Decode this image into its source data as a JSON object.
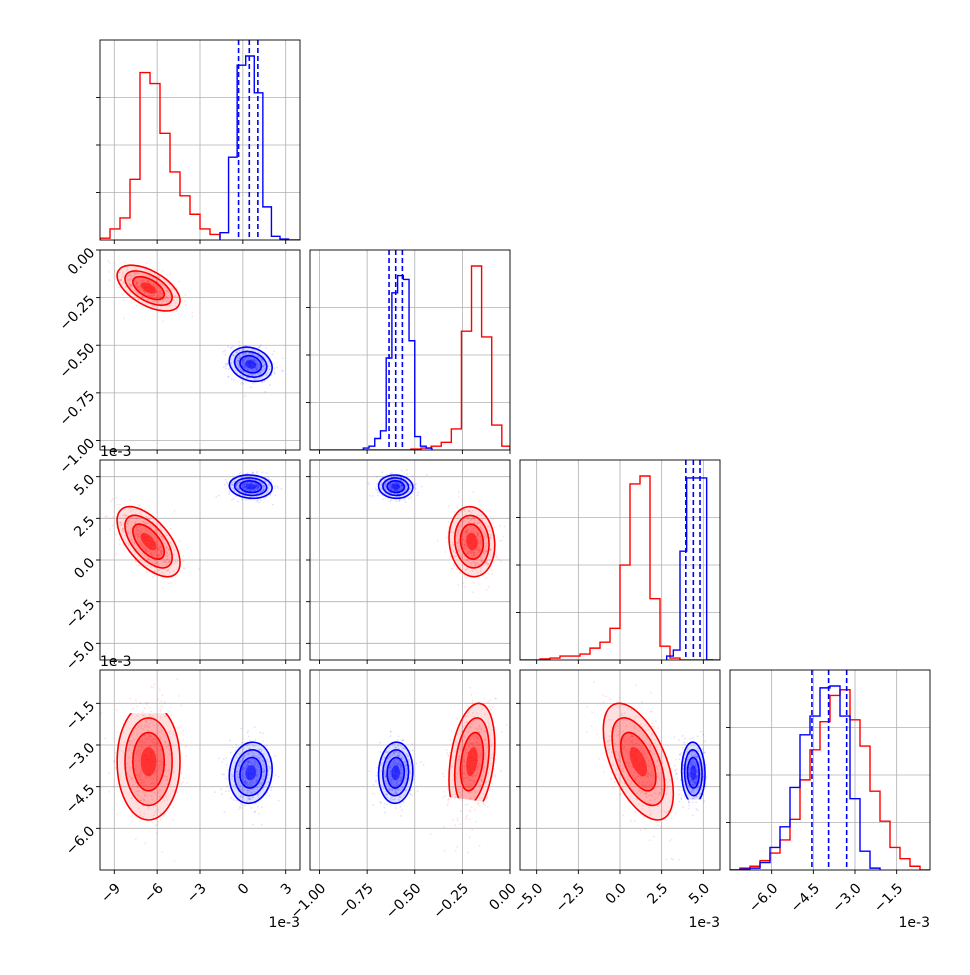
{
  "colors": {
    "series_a": "#ff0000",
    "series_b": "#0000ff",
    "grid": "#b0b0b0",
    "frame": "#000000"
  },
  "chart_data": {
    "type": "corner",
    "grid": true,
    "offset_text": "1e-3",
    "parameters": [
      {
        "range": [
          -10,
          4
        ],
        "ticks": [
          -9,
          -6,
          -3,
          0,
          3
        ],
        "tick_labels": [
          "−9",
          "−6",
          "−3",
          "0",
          "3"
        ],
        "offset_text": "1e-3"
      },
      {
        "range": [
          -1.05,
          0.0
        ],
        "ticks": [
          -1.0,
          -0.75,
          -0.5,
          -0.25,
          0.0
        ],
        "tick_labels": [
          "−1.00",
          "−0.75",
          "−0.50",
          "−0.25",
          "0.00"
        ],
        "offset_text": ""
      },
      {
        "range": [
          -6,
          6
        ],
        "ticks": [
          -5.0,
          -2.5,
          0.0,
          2.5,
          5.0
        ],
        "tick_labels": [
          "−5.0",
          "−2.5",
          "0.0",
          "2.5",
          "5.0"
        ],
        "offset_text": "1e-3"
      },
      {
        "range": [
          -7.5,
          -0.3
        ],
        "ticks": [
          -6.0,
          -4.5,
          -3.0,
          -1.5
        ],
        "tick_labels": [
          "−6.0",
          "−4.5",
          "−3.0",
          "−1.5"
        ],
        "offset_text": "1e-3"
      }
    ],
    "series": [
      {
        "color": "#ff0000",
        "means": [
          -6.6,
          -0.2,
          1.1,
          -3.6
        ],
        "sds": [
          1.1,
          0.06,
          1.05,
          1.05
        ],
        "corr": {
          "0-1": -0.55,
          "0-2": -0.6,
          "0-3": 0.0,
          "1-2": -0.1,
          "1-3": 0.3,
          "2-3": -0.55
        },
        "histograms": [
          {
            "edges": [
              -10,
              -9.3,
              -8.6,
              -7.9,
              -7.2,
              -6.5,
              -5.8,
              -5.1,
              -4.4,
              -3.7,
              -3.0,
              -2.3,
              -1.6
            ],
            "counts": [
              0.01,
              0.06,
              0.12,
              0.33,
              0.91,
              0.85,
              0.58,
              0.37,
              0.24,
              0.14,
              0.06,
              0.03,
              0.01
            ]
          },
          {
            "edges": [
              -1.05,
              -0.997,
              -0.944,
              -0.891,
              -0.838,
              -0.785,
              -0.732,
              -0.679,
              -0.626,
              -0.573,
              -0.52,
              -0.467,
              -0.414,
              -0.361,
              -0.308,
              -0.255,
              -0.202,
              -0.149,
              -0.096,
              -0.043,
              0.0
            ],
            "counts": [
              0,
              0,
              0,
              0,
              0,
              0,
              0,
              0,
              0,
              0,
              0.005,
              0.01,
              0.02,
              0.04,
              0.11,
              0.62,
              0.96,
              0.59,
              0.13,
              0.02
            ]
          },
          {
            "edges": [
              -6,
              -5.4,
              -4.8,
              -4.2,
              -3.6,
              -3.0,
              -2.4,
              -1.8,
              -1.2,
              -0.6,
              0.0,
              0.6,
              1.2,
              1.8,
              2.4,
              3.0,
              3.6,
              4.2,
              4.8,
              5.4,
              6.0
            ],
            "counts": [
              0,
              0,
              0.005,
              0.01,
              0.02,
              0.02,
              0.03,
              0.06,
              0.09,
              0.16,
              0.48,
              0.89,
              0.93,
              0.31,
              0.07,
              0.01,
              0,
              0,
              0,
              0
            ]
          },
          {
            "edges": [
              -7.5,
              -7.14,
              -6.78,
              -6.42,
              -6.06,
              -5.7,
              -5.34,
              -4.98,
              -4.62,
              -4.26,
              -3.9,
              -3.54,
              -3.18,
              -2.82,
              -2.46,
              -2.1,
              -1.74,
              -1.38,
              -1.02,
              -0.66,
              -0.3
            ],
            "counts": [
              0,
              0.01,
              0.02,
              0.05,
              0.09,
              0.16,
              0.27,
              0.48,
              0.64,
              0.79,
              0.93,
              0.96,
              0.8,
              0.66,
              0.42,
              0.26,
              0.12,
              0.06,
              0.02,
              0
            ]
          }
        ]
      },
      {
        "color": "#0000ff",
        "means": [
          0.55,
          -0.6,
          4.4,
          -4.0
        ],
        "sds": [
          0.75,
          0.045,
          0.35,
          0.55
        ],
        "corr": {
          "0-1": -0.2,
          "0-2": -0.1,
          "0-3": 0.1,
          "1-2": -0.05,
          "1-3": 0.05,
          "2-3": -0.05
        },
        "histograms": [
          {
            "edges": [
              -1.6,
              -1.0,
              -0.4,
              0.2,
              0.8,
              1.4,
              2.0,
              2.6,
              3.2,
              4.0
            ],
            "counts": [
              0.04,
              0.45,
              0.95,
              1.0,
              0.8,
              0.18,
              0.02,
              0.005,
              0
            ]
          },
          {
            "edges": [
              -0.77,
              -0.74,
              -0.71,
              -0.68,
              -0.65,
              -0.62,
              -0.59,
              -0.56,
              -0.53,
              -0.5,
              -0.47,
              -0.44,
              -0.41
            ],
            "counts": [
              0.01,
              0.02,
              0.06,
              0.1,
              0.48,
              0.82,
              0.91,
              0.89,
              0.57,
              0.07,
              0.02,
              0.01
            ]
          },
          {
            "edges": [
              2.8,
              3.2,
              3.6,
              4.0,
              4.4,
              4.8,
              5.2,
              5.6
            ],
            "counts": [
              0.02,
              0.05,
              0.55,
              0.92,
              0.92,
              0.92,
              0.0
            ]
          },
          {
            "edges": [
              -7.5,
              -7.14,
              -6.78,
              -6.42,
              -6.06,
              -5.7,
              -5.34,
              -4.98,
              -4.62,
              -4.26,
              -3.9,
              -3.54,
              -3.18,
              -2.82,
              -2.46,
              -2.1
            ],
            "counts": [
              0,
              0.005,
              0.01,
              0.04,
              0.12,
              0.23,
              0.44,
              0.72,
              0.82,
              0.97,
              0.98,
              0.82,
              0.38,
              0.1,
              0.01
            ]
          }
        ],
        "quantiles": [
          [
            -0.3,
            0.45,
            1.05
          ],
          [
            -0.635,
            -0.6,
            -0.565
          ],
          [
            3.95,
            4.4,
            4.8
          ],
          [
            -4.55,
            -3.95,
            -3.3
          ]
        ]
      }
    ]
  }
}
